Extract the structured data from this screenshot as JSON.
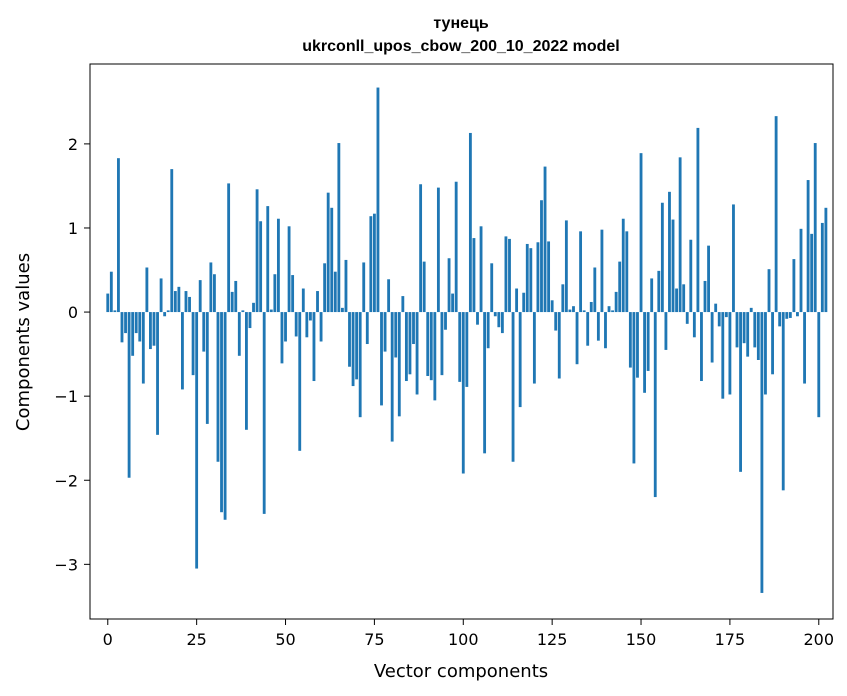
{
  "chart_data": {
    "type": "bar",
    "title": "тунець",
    "subtitle": "ukrconll_upos_cbow_200_10_2022 model",
    "xlabel": "Vector components",
    "ylabel": "Components values",
    "xlim": [
      -5,
      204
    ],
    "ylim": [
      -3.65,
      2.95
    ],
    "xticks": [
      0,
      25,
      50,
      75,
      100,
      125,
      150,
      175,
      200
    ],
    "yticks": [
      -3,
      -2,
      -1,
      0,
      1,
      2
    ],
    "ytick_labels": [
      "−3",
      "−2",
      "−1",
      "0",
      "1",
      "2"
    ],
    "grid": false,
    "values": [
      0.22,
      0.48,
      0.02,
      1.83,
      -0.36,
      -0.25,
      -1.97,
      -0.52,
      -0.25,
      -0.35,
      -0.85,
      0.53,
      -0.44,
      -0.4,
      -1.46,
      0.4,
      -0.05,
      0.02,
      1.7,
      0.25,
      0.3,
      -0.92,
      0.25,
      0.18,
      -0.75,
      -3.05,
      0.38,
      -0.47,
      -1.33,
      0.59,
      0.45,
      -1.78,
      -2.38,
      -2.47,
      1.53,
      0.24,
      0.37,
      -0.52,
      0.02,
      -1.4,
      -0.19,
      0.11,
      1.46,
      1.08,
      -2.4,
      1.26,
      0.03,
      0.45,
      1.11,
      -0.61,
      -0.35,
      1.02,
      0.44,
      -0.29,
      -1.65,
      0.28,
      -0.3,
      -0.1,
      -0.82,
      0.25,
      -0.35,
      0.58,
      1.42,
      1.24,
      0.48,
      2.01,
      0.05,
      0.62,
      -0.65,
      -0.88,
      -0.8,
      -1.25,
      0.59,
      -0.38,
      1.14,
      1.17,
      2.67,
      -1.11,
      -0.47,
      0.39,
      -1.54,
      -0.54,
      -1.24,
      0.19,
      -0.82,
      -0.74,
      -0.38,
      -0.98,
      1.52,
      0.6,
      -0.76,
      -0.81,
      -1.05,
      1.48,
      -0.75,
      -0.21,
      0.64,
      0.22,
      1.55,
      -0.83,
      -1.92,
      -0.89,
      2.13,
      0.88,
      -0.15,
      1.02,
      -1.68,
      -0.43,
      0.58,
      -0.05,
      -0.18,
      -0.25,
      0.9,
      0.87,
      -1.78,
      0.28,
      -1.13,
      0.23,
      0.81,
      0.76,
      -0.85,
      0.83,
      1.33,
      1.73,
      0.84,
      0.14,
      -0.22,
      -0.79,
      0.33,
      1.09,
      0.03,
      0.07,
      -0.62,
      0.96,
      0.02,
      -0.4,
      0.12,
      0.53,
      -0.34,
      0.98,
      -0.43,
      0.07,
      0.02,
      0.24,
      0.6,
      1.11,
      0.96,
      -0.66,
      -1.8,
      -0.78,
      1.89,
      -0.96,
      -0.7,
      0.4,
      -2.2,
      0.49,
      1.3,
      -0.45,
      1.43,
      1.1,
      0.28,
      1.84,
      0.33,
      -0.14,
      0.86,
      -0.3,
      2.19,
      -0.82,
      0.37,
      0.79,
      -0.6,
      0.1,
      -0.17,
      -1.03,
      -0.06,
      -0.98,
      1.28,
      -0.42,
      -1.9,
      -0.37,
      -0.53,
      0.05,
      -0.42,
      -0.57,
      -3.34,
      -0.98,
      0.51,
      -0.74,
      2.33,
      -0.17,
      -2.12,
      -0.08,
      -0.07,
      0.63,
      -0.05,
      0.99,
      -0.85,
      1.57,
      0.93,
      2.01,
      -1.25,
      1.06,
      1.24
    ]
  }
}
